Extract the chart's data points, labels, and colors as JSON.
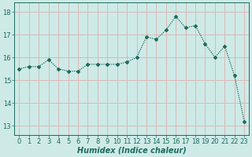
{
  "x": [
    0,
    1,
    2,
    3,
    4,
    5,
    6,
    7,
    8,
    9,
    10,
    11,
    12,
    13,
    14,
    15,
    16,
    17,
    18,
    19,
    20,
    21,
    22,
    23
  ],
  "y": [
    15.5,
    15.6,
    15.6,
    15.9,
    15.5,
    15.4,
    15.4,
    15.7,
    15.7,
    15.7,
    15.7,
    15.8,
    16.0,
    16.9,
    16.8,
    17.2,
    17.8,
    17.3,
    17.4,
    16.6,
    16.0,
    16.5,
    15.2,
    13.2
  ],
  "line_color": "#1e6b5e",
  "marker": "D",
  "marker_size": 2.0,
  "bg_color": "#ceeae7",
  "grid_color": "#d9b8b8",
  "xlabel": "Humidex (Indice chaleur)",
  "ylim": [
    12.6,
    18.4
  ],
  "xlim": [
    -0.5,
    23.5
  ],
  "yticks": [
    13,
    14,
    15,
    16,
    17,
    18
  ],
  "xticks": [
    0,
    1,
    2,
    3,
    4,
    5,
    6,
    7,
    8,
    9,
    10,
    11,
    12,
    13,
    14,
    15,
    16,
    17,
    18,
    19,
    20,
    21,
    22,
    23
  ],
  "xlabel_fontsize": 7.0,
  "tick_fontsize": 6.0,
  "tick_color": "#1e6b5e",
  "line_width": 0.9
}
